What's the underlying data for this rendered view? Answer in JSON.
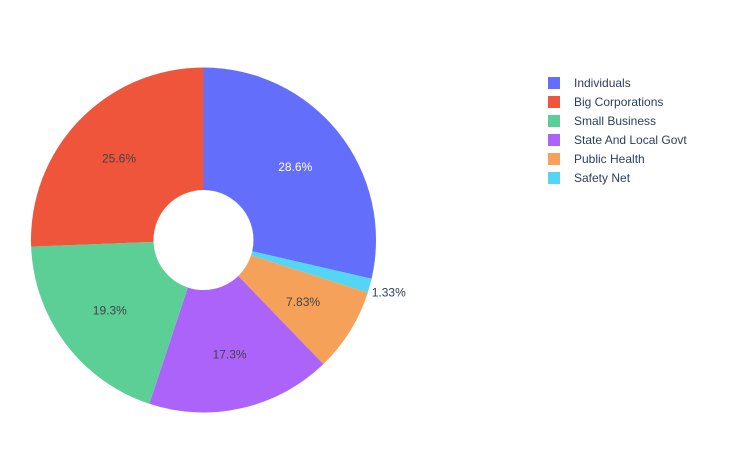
{
  "chart_data": {
    "type": "pie",
    "hole": true,
    "labels": [
      "Individuals",
      "Big Corporations",
      "Small Business",
      "State And Local Govt",
      "Public Health",
      "Safety Net"
    ],
    "values": [
      28.6,
      25.6,
      19.3,
      17.3,
      7.83,
      1.33
    ],
    "value_labels": [
      "28.6%",
      "25.6%",
      "19.3%",
      "17.3%",
      "7.83%",
      "1.33%"
    ],
    "colors": [
      "#636efa",
      "#ef553b",
      "#00cc96",
      "#ab63fa",
      "#ffa15a",
      "#19d3f3"
    ],
    "draw_order": [
      0,
      5,
      4,
      3,
      2,
      1
    ],
    "legend_position": "top-right"
  }
}
